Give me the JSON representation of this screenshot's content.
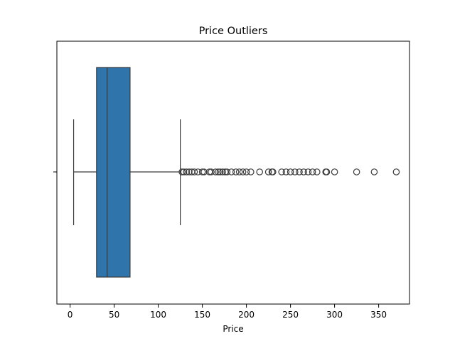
{
  "chart_data": {
    "type": "box",
    "title": "Price Outliers",
    "xlabel": "Price",
    "ylabel": "",
    "orientation": "horizontal",
    "xlim": [
      -15,
      385
    ],
    "xticks": [
      0,
      50,
      100,
      150,
      200,
      250,
      300,
      350
    ],
    "xtick_labels": [
      "0",
      "50",
      "100",
      "150",
      "200",
      "250",
      "300",
      "350"
    ],
    "grid": false,
    "box": {
      "color": "#2f74aa",
      "whisker_low": 4,
      "q1": 30,
      "median": 42,
      "q3": 68,
      "whisker_high": 125
    },
    "outliers": [
      127,
      129,
      132,
      135,
      138,
      141,
      145,
      150,
      152,
      158,
      160,
      165,
      168,
      170,
      173,
      176,
      178,
      183,
      188,
      192,
      196,
      200,
      205,
      215,
      225,
      229,
      230,
      240,
      245,
      250,
      255,
      260,
      265,
      270,
      275,
      280,
      290,
      291,
      300,
      325,
      345,
      370
    ]
  }
}
